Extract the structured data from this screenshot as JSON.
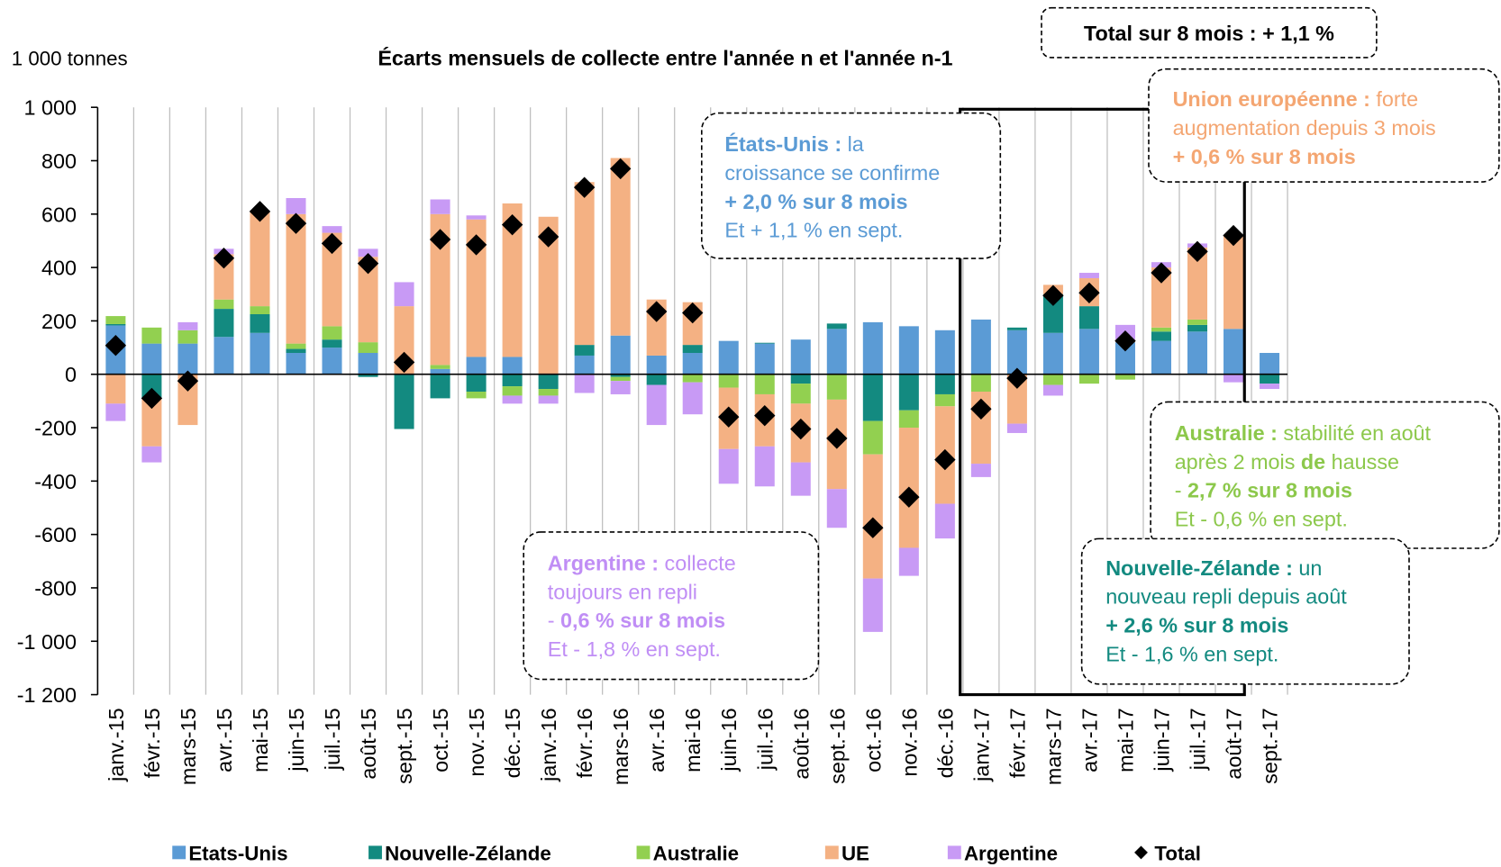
{
  "chart_data": {
    "type": "stacked-bar",
    "title": "Écarts mensuels de collecte entre l'année n et l'année n-1",
    "y_axis_label": "1 000 tonnes",
    "total_note": "Total sur 8 mois : + 1,1 %",
    "categories": [
      "janv.-15",
      "févr.-15",
      "mars-15",
      "avr.-15",
      "mai-15",
      "juin-15",
      "juil.-15",
      "août-15",
      "sept.-15",
      "oct.-15",
      "nov.-15",
      "déc.-15",
      "janv.-16",
      "févr.-16",
      "mars-16",
      "avr.-16",
      "mai-16",
      "juin-16",
      "juil.-16",
      "août-16",
      "sept.-16",
      "oct.-16",
      "nov.-16",
      "déc.-16",
      "janv.-17",
      "févr.-17",
      "mars-17",
      "avr.-17",
      "mai-17",
      "juin-17",
      "juil.-17",
      "août-17",
      "sept.-17"
    ],
    "ylim": [
      -1200,
      1000
    ],
    "yticks": [
      {
        "value": -1200,
        "label": "-1 200"
      },
      {
        "value": -1000,
        "label": "-1 000"
      },
      -800,
      -600,
      -400,
      -200,
      0,
      200,
      400,
      600,
      800,
      {
        "value": 1000,
        "label": "1 000"
      }
    ],
    "series": [
      {
        "name": "Etats-Unis",
        "color": "#5b9bd5",
        "values": [
          183,
          115,
          115,
          140,
          155,
          80,
          100,
          80,
          0,
          20,
          65,
          65,
          0,
          70,
          145,
          70,
          80,
          125,
          115,
          130,
          170,
          195,
          180,
          165,
          205,
          165,
          155,
          170,
          120,
          125,
          160,
          170,
          80
        ]
      },
      {
        "name": "Nouvelle-Zélande",
        "color": "#138a80",
        "values": [
          5,
          -90,
          0,
          105,
          70,
          15,
          30,
          -10,
          -205,
          -90,
          -65,
          -45,
          -55,
          40,
          -10,
          -40,
          30,
          0,
          3,
          -35,
          20,
          -175,
          -135,
          -75,
          0,
          10,
          145,
          85,
          0,
          35,
          25,
          0,
          -35
        ]
      },
      {
        "name": "Australie",
        "color": "#92d050",
        "values": [
          30,
          60,
          50,
          35,
          30,
          20,
          50,
          40,
          0,
          15,
          -25,
          -35,
          -25,
          0,
          -15,
          0,
          -30,
          -50,
          -75,
          -75,
          -95,
          -125,
          -65,
          -45,
          -65,
          0,
          -40,
          -35,
          -20,
          15,
          20,
          0,
          0
        ]
      },
      {
        "name": "UE",
        "color": "#f4b183",
        "values": [
          -110,
          -180,
          -190,
          170,
          355,
          485,
          350,
          320,
          255,
          565,
          515,
          575,
          590,
          610,
          665,
          210,
          160,
          -230,
          -195,
          -220,
          -335,
          -465,
          -450,
          -365,
          -270,
          -185,
          35,
          105,
          10,
          225,
          270,
          350,
          0
        ]
      },
      {
        "name": "Argentine",
        "color": "#c89af5",
        "values": [
          -65,
          -60,
          30,
          20,
          0,
          60,
          25,
          30,
          90,
          55,
          15,
          -30,
          -30,
          -70,
          -50,
          -150,
          -120,
          -130,
          -150,
          -125,
          -145,
          -200,
          -105,
          -130,
          -50,
          -35,
          -40,
          20,
          55,
          20,
          15,
          -30,
          -20
        ]
      }
    ],
    "total": {
      "name": "Total",
      "color": "#000000",
      "values": [
        108,
        -90,
        -25,
        435,
        610,
        565,
        490,
        415,
        45,
        505,
        485,
        560,
        515,
        700,
        770,
        235,
        230,
        -160,
        -155,
        -205,
        -240,
        -575,
        -460,
        -320,
        -130,
        -15,
        295,
        305,
        125,
        380,
        460,
        520,
        null
      ]
    },
    "annotations": [
      {
        "color": "#5b9bd5",
        "lines": [
          [
            {
              "text": "États-Unis :",
              "bold": true
            },
            {
              "text": " la"
            }
          ],
          [
            {
              "text": "croissance se confirme"
            }
          ],
          [
            {
              "text": "+ 2,0 % sur 8 mois",
              "bold": true
            }
          ],
          [
            {
              "text": "Et + 1,1 % en sept."
            }
          ]
        ]
      },
      {
        "color": "#f4a672",
        "lines": [
          [
            {
              "text": "Union européenne :",
              "bold": true
            },
            {
              "text": " forte"
            }
          ],
          [
            {
              "text": "augmentation depuis 3 mois"
            }
          ],
          [
            {
              "text": "+ 0,6 % sur 8 mois",
              "bold": true
            }
          ]
        ]
      },
      {
        "color": "#c08ef5",
        "lines": [
          [
            {
              "text": "Argentine :",
              "bold": true
            },
            {
              "text": " collecte"
            }
          ],
          [
            {
              "text": "toujours en repli"
            }
          ],
          [
            {
              "text": "- "
            },
            {
              "text": "0,6 % sur 8 mois",
              "bold": true
            }
          ],
          [
            {
              "text": "Et - 1,8 % en sept."
            }
          ]
        ]
      },
      {
        "color": "#8cc84b",
        "lines": [
          [
            {
              "text": "Australie :",
              "bold": true
            },
            {
              "text": " stabilité en août"
            }
          ],
          [
            {
              "text": "après 2 mois "
            },
            {
              "text": "de",
              "bold": true
            },
            {
              "text": " hausse"
            }
          ],
          [
            {
              "text": "- "
            },
            {
              "text": "2,7 % sur 8 mois",
              "bold": true
            }
          ],
          [
            {
              "text": "Et - 0,6 % en sept."
            }
          ]
        ]
      },
      {
        "color": "#138a80",
        "lines": [
          [
            {
              "text": "Nouvelle-Zélande :",
              "bold": true
            },
            {
              "text": " un"
            }
          ],
          [
            {
              "text": "nouveau repli depuis août"
            }
          ],
          [
            {
              "text": "+ 2,6 % sur 8 mois",
              "bold": true
            }
          ],
          [
            {
              "text": "Et - 1,6 % en sept."
            }
          ]
        ]
      }
    ]
  }
}
